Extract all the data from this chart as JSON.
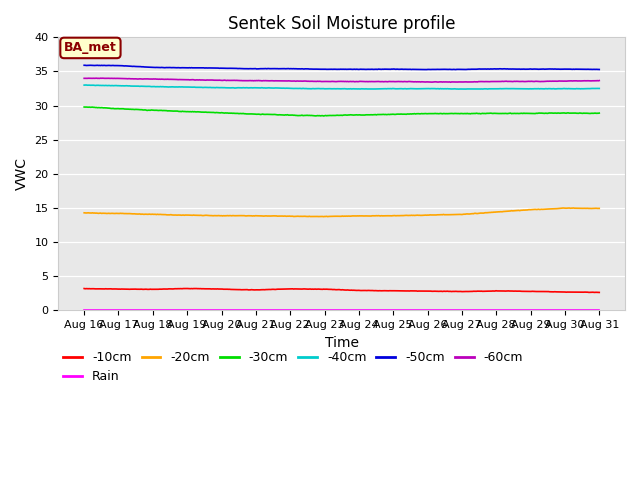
{
  "title": "Sentek Soil Moisture profile",
  "xlabel": "Time",
  "ylabel": "VWC",
  "annotation": "BA_met",
  "ylim": [
    0,
    40
  ],
  "yticks": [
    0,
    5,
    10,
    15,
    20,
    25,
    30,
    35,
    40
  ],
  "x_labels": [
    "Aug 16",
    "Aug 17",
    "Aug 18",
    "Aug 19",
    "Aug 20",
    "Aug 21",
    "Aug 22",
    "Aug 23",
    "Aug 24",
    "Aug 25",
    "Aug 26",
    "Aug 27",
    "Aug 28",
    "Aug 29",
    "Aug 30",
    "Aug 31"
  ],
  "background_color": "#e8e8e8",
  "title_fontsize": 12,
  "axis_label_fontsize": 10,
  "tick_fontsize": 8,
  "legend_fontsize": 9,
  "series_order": [
    "-10cm",
    "-20cm",
    "-30cm",
    "-40cm",
    "-50cm",
    "-60cm",
    "Rain"
  ],
  "series": {
    "-10cm": {
      "color": "#ff0000"
    },
    "-20cm": {
      "color": "#ffa500"
    },
    "-30cm": {
      "color": "#00dd00"
    },
    "-40cm": {
      "color": "#00cccc"
    },
    "-50cm": {
      "color": "#0000dd"
    },
    "-60cm": {
      "color": "#bb00bb"
    },
    "Rain": {
      "color": "#ff00ff"
    }
  },
  "n_points": 500,
  "random_seed": 7
}
